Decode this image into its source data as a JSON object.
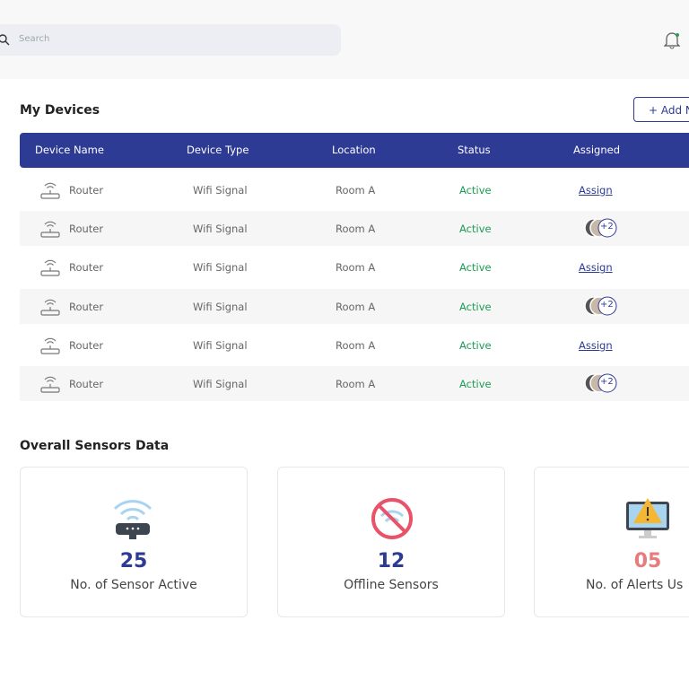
{
  "search": {
    "placeholder": "Search"
  },
  "devices": {
    "title": "My Devices",
    "add_button": "+ Add N",
    "columns": [
      "Device Name",
      "Device Type",
      "Location",
      "Status",
      "Assigned"
    ],
    "rows": [
      {
        "name": "Router",
        "type": "Wifi Signal",
        "location": "Room A",
        "status": "Active",
        "assigned": "Assign"
      },
      {
        "name": "Router",
        "type": "Wifi Signal",
        "location": "Room A",
        "status": "Active",
        "assigned": "+2"
      },
      {
        "name": "Router",
        "type": "Wifi Signal",
        "location": "Room A",
        "status": "Active",
        "assigned": "Assign"
      },
      {
        "name": "Router",
        "type": "Wifi Signal",
        "location": "Room A",
        "status": "Active",
        "assigned": "+2"
      },
      {
        "name": "Router",
        "type": "Wifi Signal",
        "location": "Room A",
        "status": "Active",
        "assigned": "Assign"
      },
      {
        "name": "Router",
        "type": "Wifi Signal",
        "location": "Room A",
        "status": "Active",
        "assigned": "+2"
      }
    ]
  },
  "sensors": {
    "title": "Overall Sensors Data",
    "cards": [
      {
        "value": "25",
        "label": "No. of Sensor Active"
      },
      {
        "value": "12",
        "label": "Offline Sensors"
      },
      {
        "value": "05",
        "label": "No. of Alerts Us"
      }
    ]
  }
}
